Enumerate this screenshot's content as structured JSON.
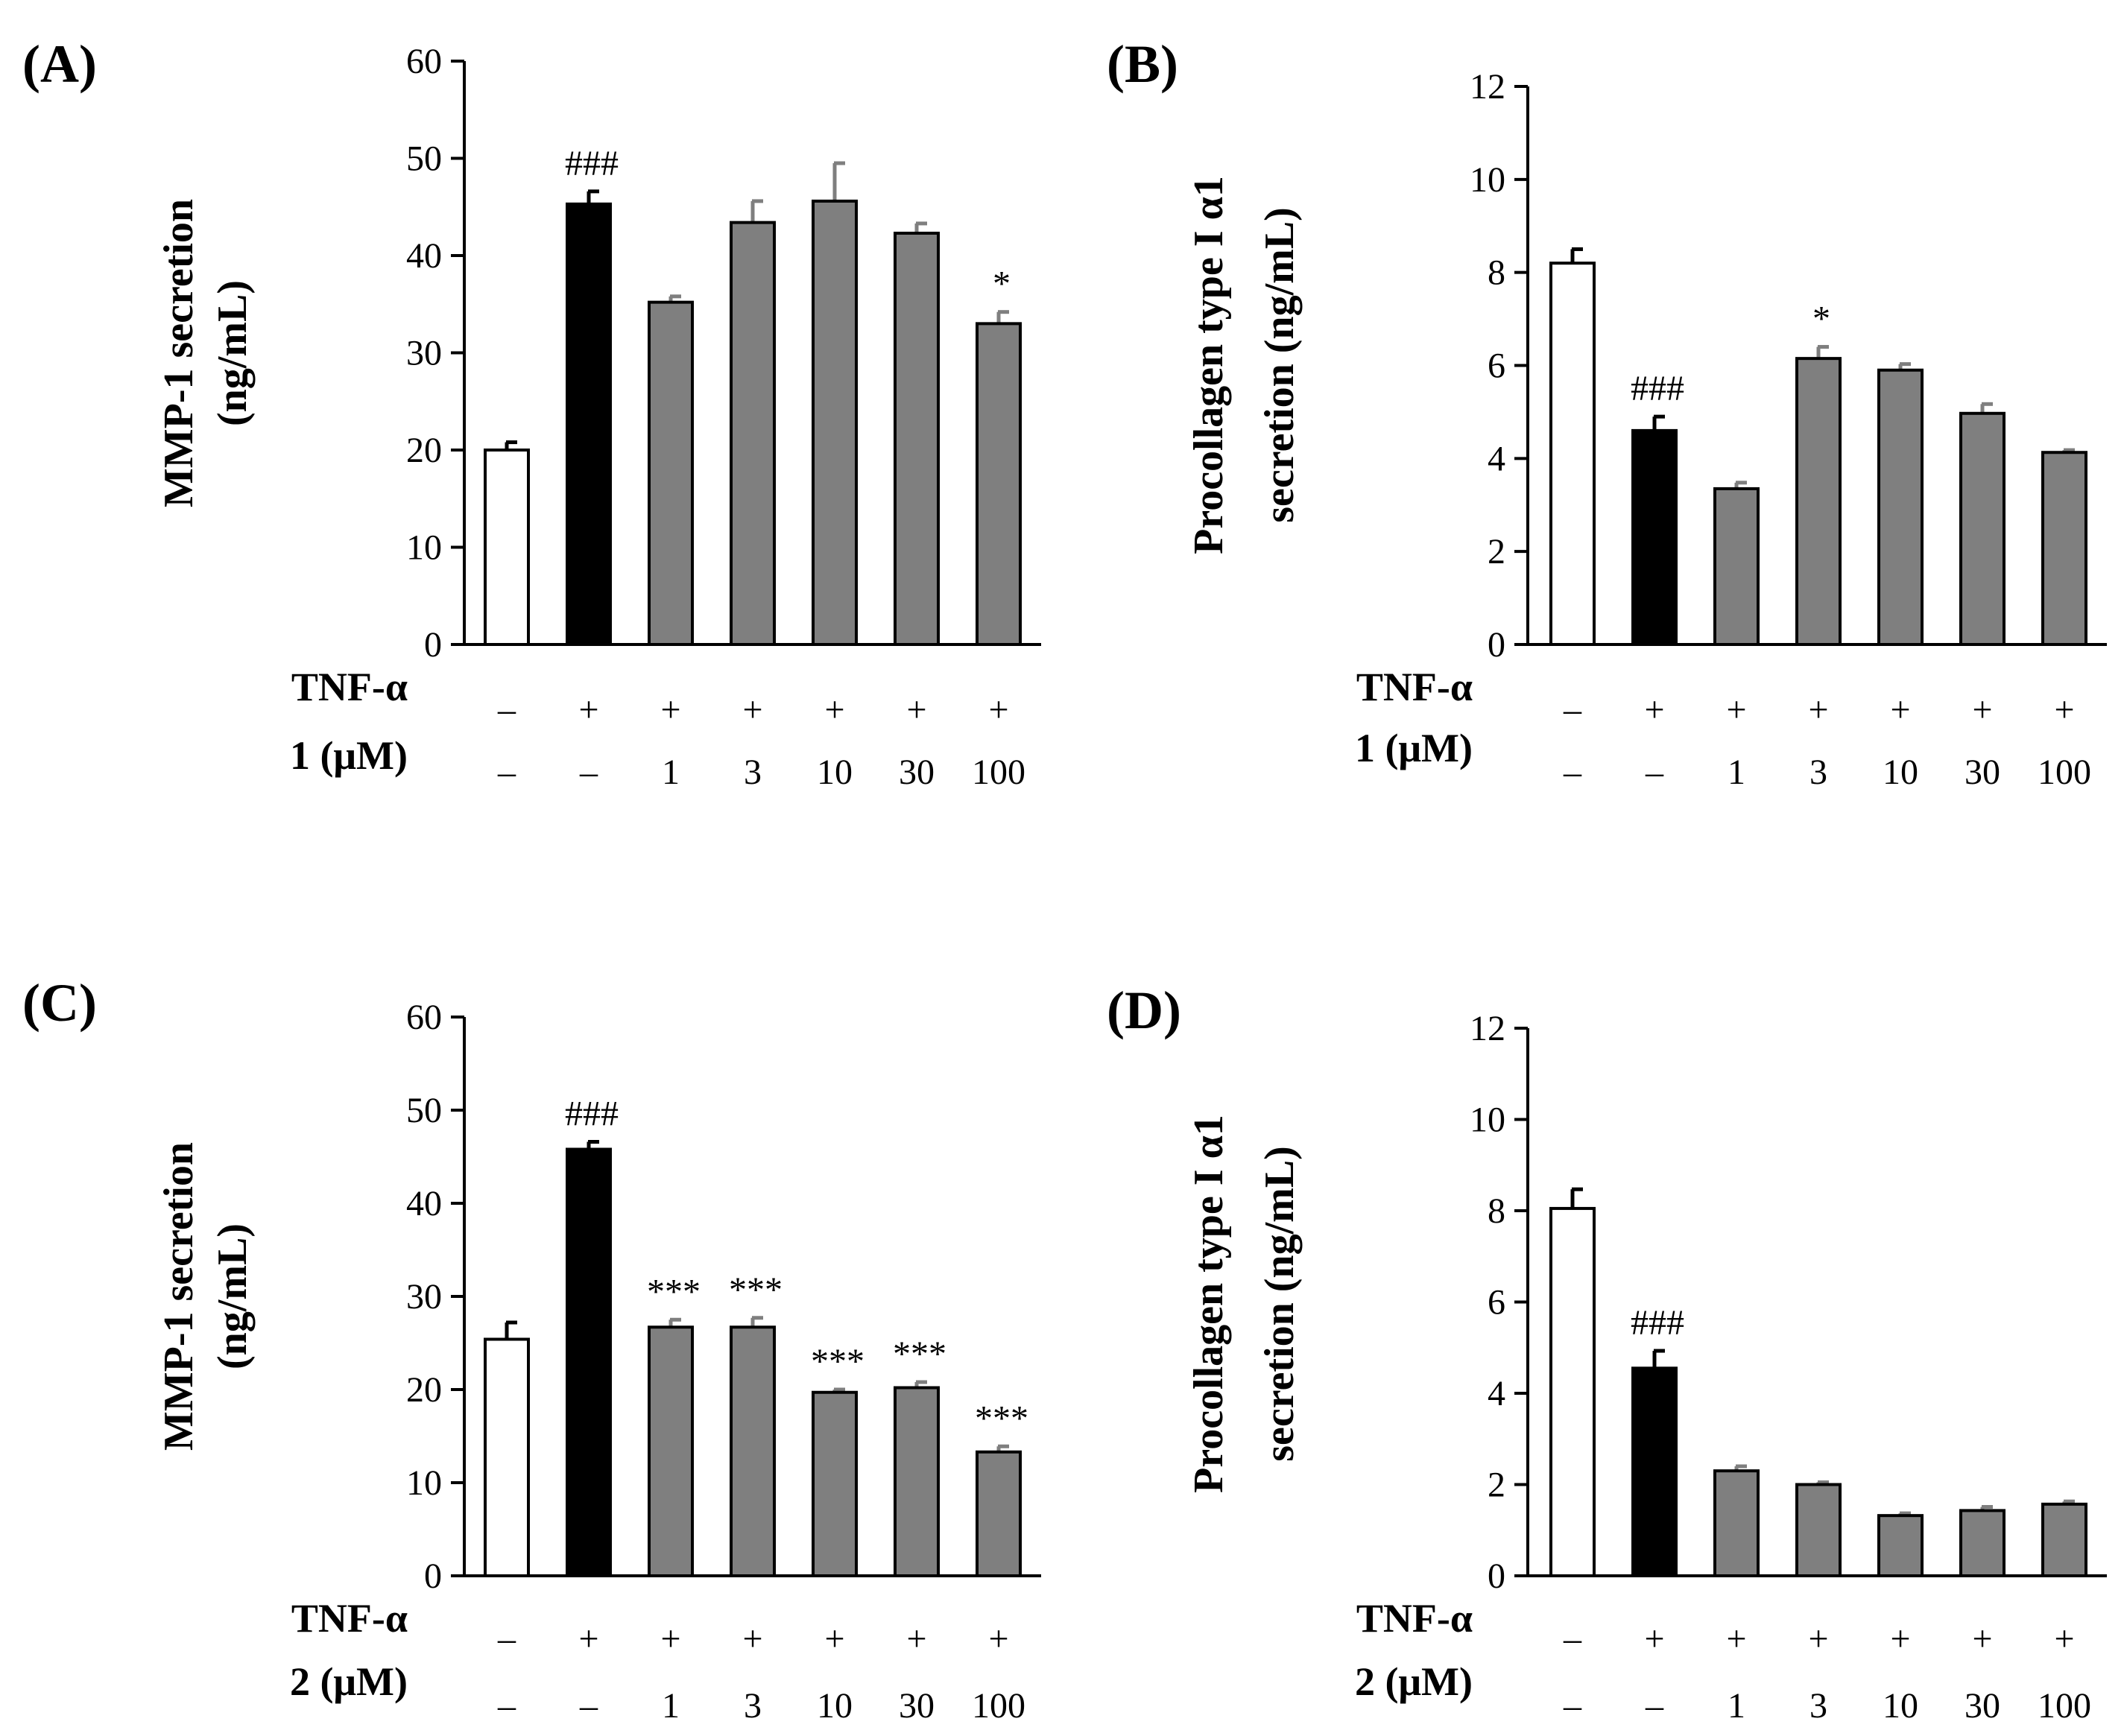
{
  "colors": {
    "control": "#ffffff",
    "tnf": "#000000",
    "treated": "#7f7f7f",
    "errbar_dark": "#000000",
    "errbar_grey": "#7f7f7f"
  },
  "chart_data": [
    {
      "type": "bar",
      "panel": "(A)",
      "ylabel": [
        "MMP-1 secretion",
        "(ng/mL)"
      ],
      "ylim": [
        0,
        60
      ],
      "yticks": [
        "0",
        "10",
        "20",
        "30",
        "40",
        "50",
        "60"
      ],
      "rows": [
        {
          "label": "TNF-α",
          "values": [
            "–",
            "+",
            "+",
            "+",
            "+",
            "+",
            "+"
          ]
        },
        {
          "label": "1 (μM)",
          "values": [
            "–",
            "–",
            "1",
            "3",
            "10",
            "30",
            "100"
          ]
        }
      ],
      "values": [
        20.0,
        45.3,
        35.2,
        43.4,
        45.6,
        42.3,
        33.0
      ],
      "errors": [
        0.8,
        1.3,
        0.6,
        2.2,
        3.9,
        1.0,
        1.2
      ],
      "kinds": [
        "control",
        "tnf",
        "treated",
        "treated",
        "treated",
        "treated",
        "treated"
      ],
      "annotations": [
        "",
        "###",
        "",
        "",
        "",
        "",
        "*"
      ]
    },
    {
      "type": "bar",
      "panel": "(B)",
      "ylabel": [
        "Procollagen type I α1",
        "secretion (ng/mL)"
      ],
      "ylim": [
        0,
        12
      ],
      "yticks": [
        "0",
        "2",
        "4",
        "6",
        "8",
        "10",
        "12"
      ],
      "rows": [
        {
          "label": "TNF-α",
          "values": [
            "–",
            "+",
            "+",
            "+",
            "+",
            "+",
            "+"
          ]
        },
        {
          "label": "1 (μM)",
          "values": [
            "–",
            "–",
            "1",
            "3",
            "10",
            "30",
            "100"
          ]
        }
      ],
      "values": [
        8.2,
        4.6,
        3.35,
        6.15,
        5.9,
        4.97,
        4.13
      ],
      "errors": [
        0.3,
        0.3,
        0.13,
        0.25,
        0.13,
        0.2,
        0.05
      ],
      "kinds": [
        "control",
        "tnf",
        "treated",
        "treated",
        "treated",
        "treated",
        "treated"
      ],
      "annotations": [
        "",
        "###",
        "",
        "*",
        "",
        "",
        ""
      ]
    },
    {
      "type": "bar",
      "panel": "(C)",
      "ylabel": [
        "MMP-1 secretion",
        "(ng/mL)"
      ],
      "ylim": [
        0,
        60
      ],
      "yticks": [
        "0",
        "10",
        "20",
        "30",
        "40",
        "50",
        "60"
      ],
      "rows": [
        {
          "label": "TNF-α",
          "values": [
            "–",
            "+",
            "+",
            "+",
            "+",
            "+",
            "+"
          ]
        },
        {
          "label": "2 (μM)",
          "values": [
            "–",
            "–",
            "1",
            "3",
            "10",
            "30",
            "100"
          ]
        }
      ],
      "values": [
        25.4,
        45.8,
        26.7,
        26.7,
        19.7,
        20.2,
        13.3
      ],
      "errors": [
        1.8,
        0.8,
        0.8,
        1.0,
        0.3,
        0.6,
        0.6
      ],
      "kinds": [
        "control",
        "tnf",
        "treated",
        "treated",
        "treated",
        "treated",
        "treated"
      ],
      "annotations": [
        "",
        "###",
        "***",
        "***",
        "***",
        "***",
        "***"
      ]
    },
    {
      "type": "bar",
      "panel": "(D)",
      "ylabel": [
        "Procollagen type I α1",
        "secretion (ng/mL)"
      ],
      "ylim": [
        0,
        12
      ],
      "yticks": [
        "0",
        "2",
        "4",
        "6",
        "8",
        "10",
        "12"
      ],
      "rows": [
        {
          "label": "TNF-α",
          "values": [
            "–",
            "+",
            "+",
            "+",
            "+",
            "+",
            "+"
          ]
        },
        {
          "label": "2 (μM)",
          "values": [
            "–",
            "–",
            "1",
            "3",
            "10",
            "30",
            "100"
          ]
        }
      ],
      "values": [
        8.05,
        4.55,
        2.3,
        2.0,
        1.32,
        1.43,
        1.57
      ],
      "errors": [
        0.42,
        0.38,
        0.1,
        0.05,
        0.05,
        0.08,
        0.06
      ],
      "kinds": [
        "control",
        "tnf",
        "treated",
        "treated",
        "treated",
        "treated",
        "treated"
      ],
      "annotations": [
        "",
        "###",
        "",
        "",
        "",
        "",
        ""
      ]
    }
  ]
}
